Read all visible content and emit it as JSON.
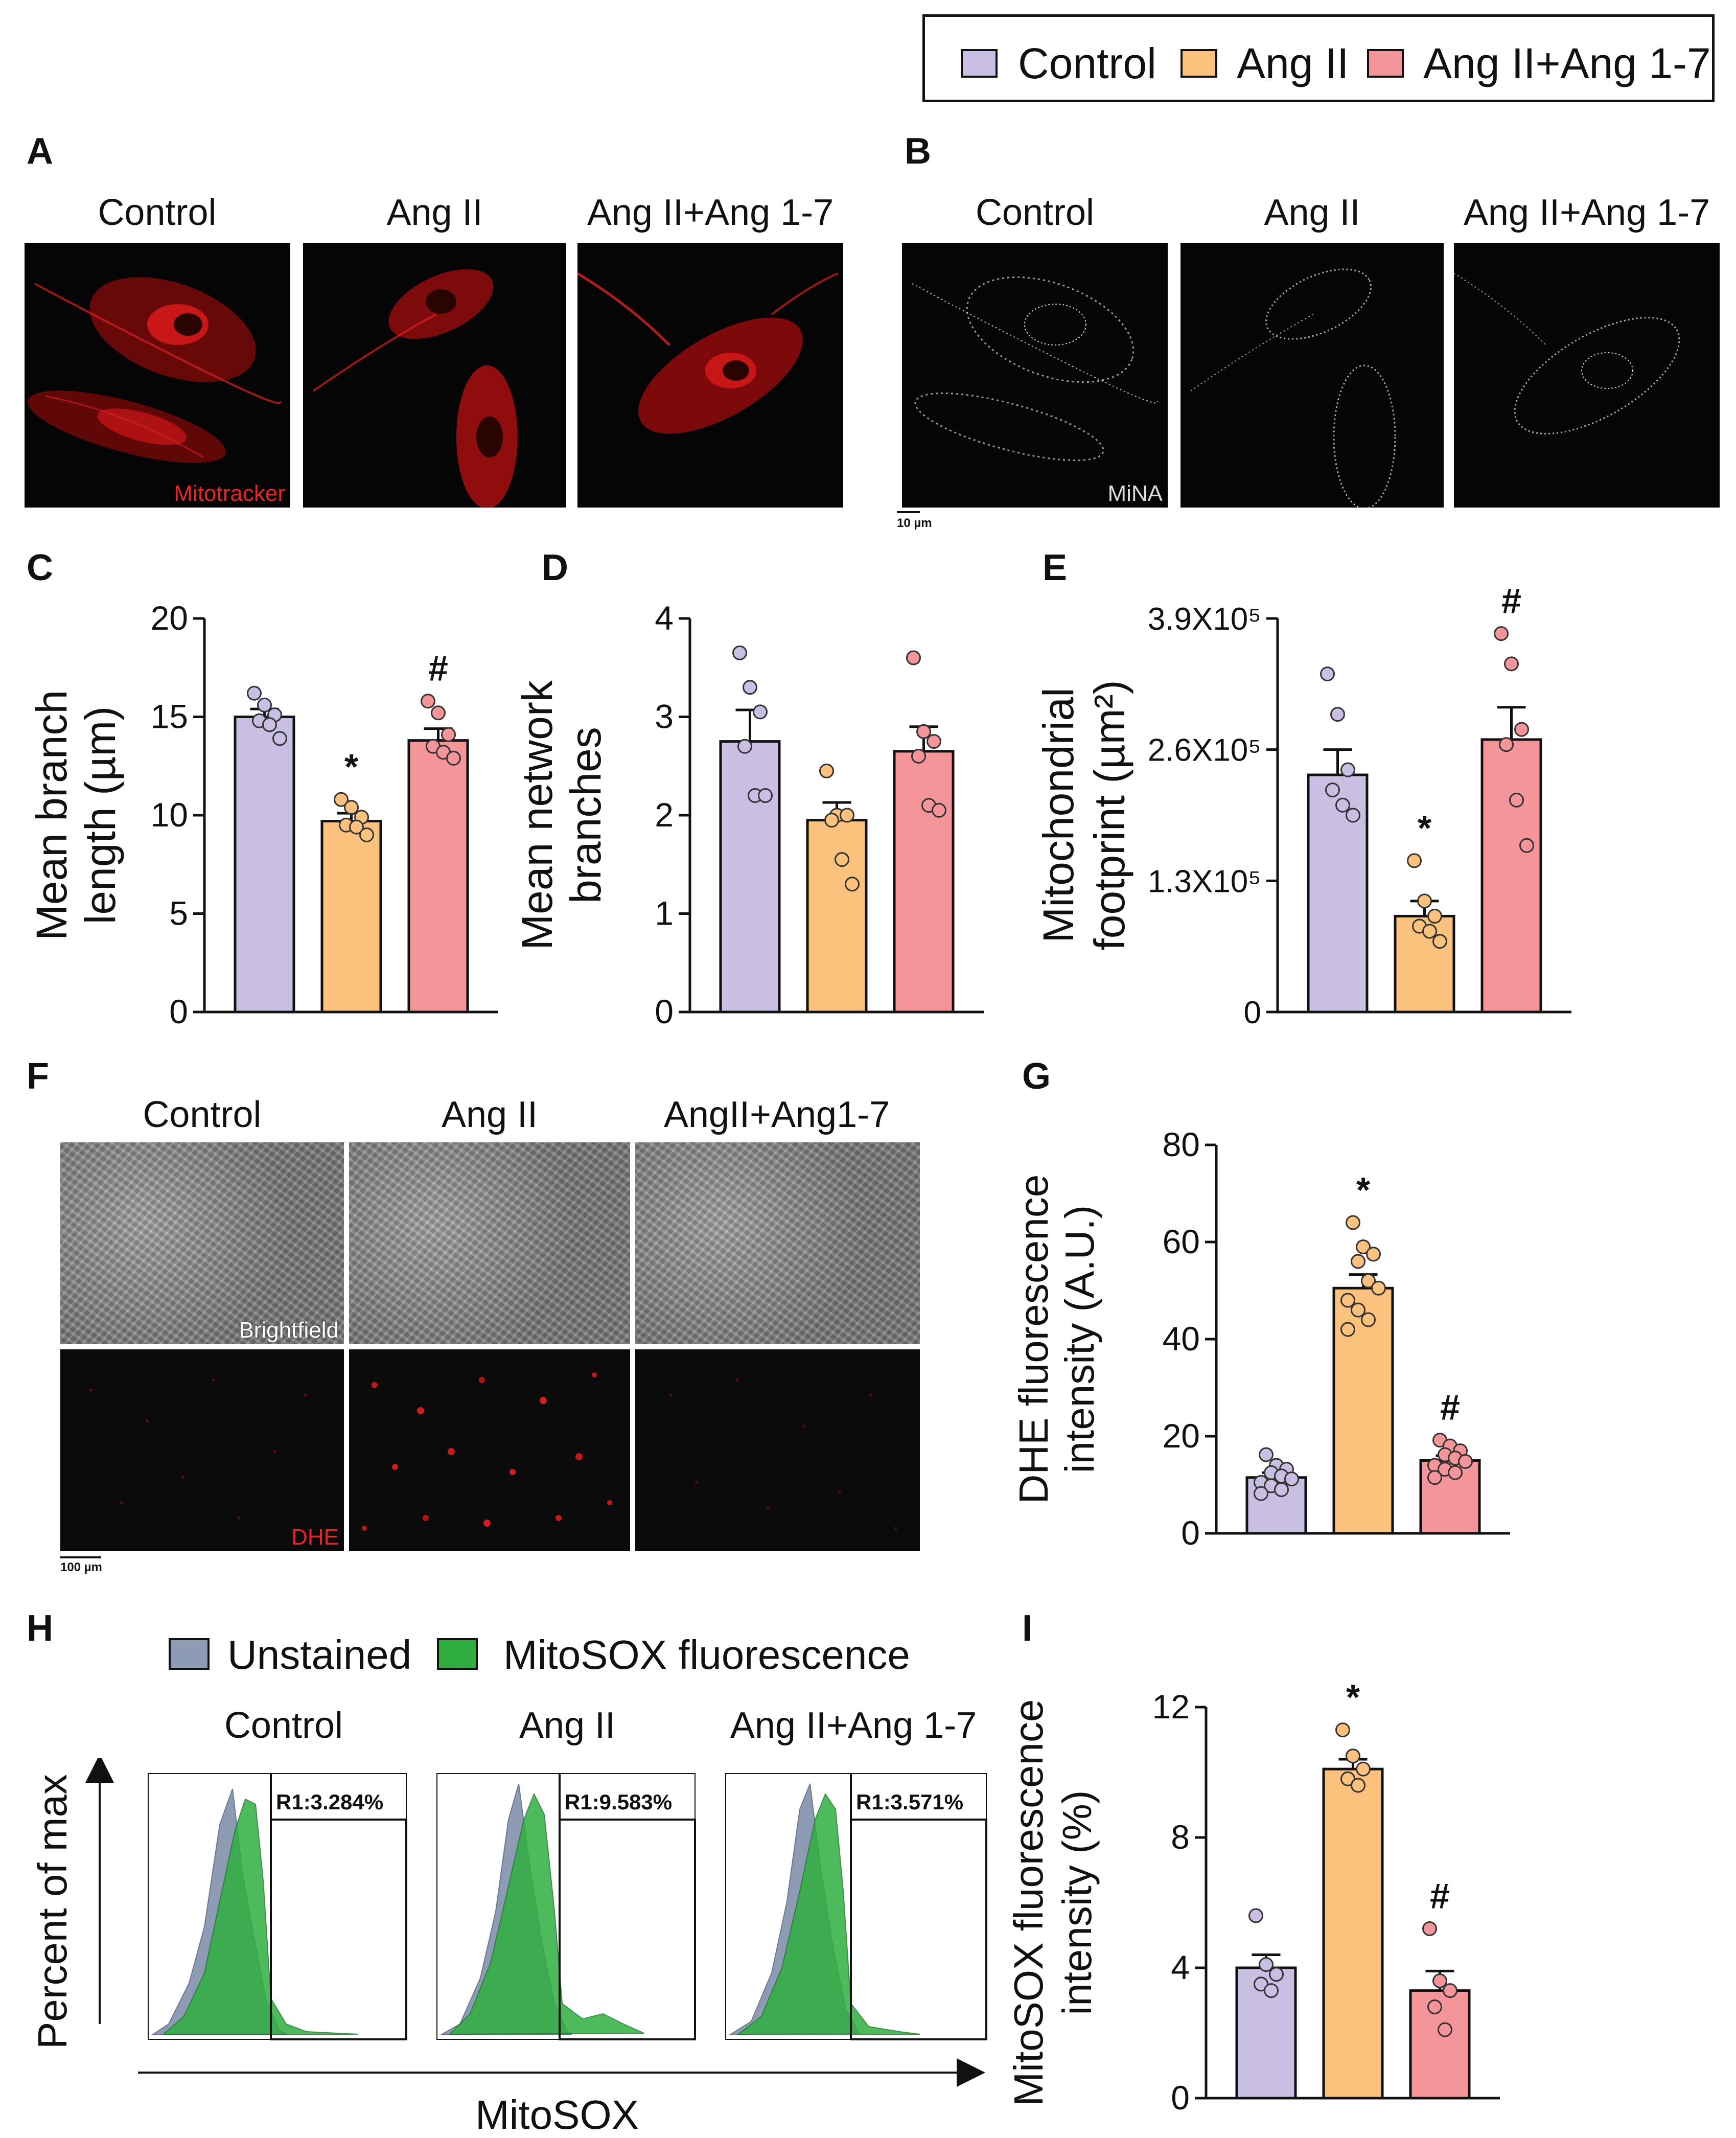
{
  "legend_top": {
    "items": [
      {
        "label": "Control",
        "color": "#c9bfe3"
      },
      {
        "label": "Ang II",
        "color": "#fbc27e"
      },
      {
        "label": "Ang II+Ang 1-7",
        "color": "#f4959a"
      }
    ]
  },
  "panels": {
    "A": {
      "letter": "A",
      "titles": [
        "Control",
        "Ang II",
        "Ang II+Ang 1-7"
      ],
      "stain": "Mitotracker"
    },
    "B": {
      "letter": "B",
      "titles": [
        "Control",
        "Ang II",
        "Ang II+Ang 1-7"
      ],
      "stain": "MiNA",
      "scalebar": "10 µm"
    },
    "C": {
      "letter": "C"
    },
    "D": {
      "letter": "D"
    },
    "E": {
      "letter": "E"
    },
    "F": {
      "letter": "F",
      "titles": [
        "Control",
        "Ang II",
        "AngII+Ang1-7"
      ],
      "stain_top": "Brightfield",
      "stain_bottom": "DHE",
      "scalebar": "100 µm"
    },
    "G": {
      "letter": "G"
    },
    "H": {
      "letter": "H",
      "legend": [
        {
          "label": "Unstained",
          "color": "#8e9bb5"
        },
        {
          "label": "MitoSOX fluorescence",
          "color": "#2fae3f"
        }
      ],
      "titles": [
        "Control",
        "Ang II",
        "Ang II+Ang 1-7"
      ],
      "ylabel": "Percent of max",
      "xlabel": "MitoSOX",
      "gates": [
        "R1:3.284%",
        "R1:9.583%",
        "R1:3.571%"
      ]
    },
    "I": {
      "letter": "I"
    }
  },
  "chart_data": [
    {
      "id": "C",
      "type": "bar",
      "categories": [
        "Control",
        "Ang II",
        "Ang II+Ang 1-7"
      ],
      "values": [
        15.0,
        9.7,
        13.8
      ],
      "sem": [
        0.4,
        0.4,
        0.6
      ],
      "points": [
        [
          16.2,
          15.6,
          15.1,
          14.8,
          14.6,
          13.9
        ],
        [
          10.8,
          10.4,
          9.9,
          9.5,
          9.4,
          9.0
        ],
        [
          15.8,
          15.2,
          14.1,
          13.5,
          13.2,
          12.9
        ]
      ],
      "significance": [
        "",
        "*",
        "#"
      ],
      "ylabel": "Mean branch length (µm)",
      "yticks": [
        "0",
        "5",
        "10",
        "15",
        "20"
      ],
      "ylim": [
        0,
        20
      ]
    },
    {
      "id": "D",
      "type": "bar",
      "categories": [
        "Control",
        "Ang II",
        "Ang II+Ang 1-7"
      ],
      "values": [
        2.75,
        1.95,
        2.65
      ],
      "sem": [
        0.32,
        0.18,
        0.25
      ],
      "points": [
        [
          3.65,
          3.3,
          3.05,
          2.7,
          2.2,
          2.2
        ],
        [
          2.45,
          2.0,
          2.0,
          1.95,
          1.55,
          1.3
        ],
        [
          3.6,
          2.85,
          2.75,
          2.6,
          2.1,
          2.05
        ]
      ],
      "significance": [
        "",
        "",
        ""
      ],
      "ylabel": "Mean network branches",
      "yticks": [
        "0",
        "1",
        "2",
        "3",
        "4"
      ],
      "ylim": [
        0,
        4
      ]
    },
    {
      "id": "E",
      "type": "bar",
      "categories": [
        "Control",
        "Ang II",
        "Ang II+Ang 1-7"
      ],
      "values": [
        235000,
        95000,
        270000
      ],
      "sem": [
        25000,
        15000,
        32000
      ],
      "points": [
        [
          335000,
          295000,
          240000,
          220000,
          205000,
          195000
        ],
        [
          150000,
          110000,
          95000,
          85000,
          80000,
          70000
        ],
        [
          375000,
          345000,
          280000,
          265000,
          210000,
          165000
        ]
      ],
      "significance": [
        "",
        "*",
        "#"
      ],
      "ylabel": "Mitochondrial footprint (µm²)",
      "yticks": [
        "0",
        "1.3X10⁵",
        "2.6X10⁵",
        "3.9X10⁵"
      ],
      "ylim": [
        0,
        390000
      ]
    },
    {
      "id": "G",
      "type": "bar",
      "categories": [
        "Control",
        "Ang II",
        "Ang II+Ang 1-7"
      ],
      "values": [
        11.5,
        50.5,
        15.0
      ],
      "sem": [
        1.0,
        2.8,
        1.0
      ],
      "points": [
        [
          16.2,
          14.0,
          13.2,
          12.5,
          11.8,
          11.2,
          10.5,
          9.8,
          9.0,
          8.2
        ],
        [
          64.0,
          59.0,
          57.5,
          56.0,
          52.0,
          50.5,
          48.0,
          46.0,
          44.0,
          42.0
        ],
        [
          19.2,
          18.0,
          17.0,
          16.2,
          15.5,
          14.8,
          14.0,
          13.2,
          12.5,
          11.5
        ]
      ],
      "significance": [
        "",
        "*",
        "#"
      ],
      "ylabel": "DHE fluorescence intensity (A.U.)",
      "yticks": [
        "0",
        "20",
        "40",
        "60",
        "80"
      ],
      "ylim": [
        0,
        80
      ]
    },
    {
      "id": "I",
      "type": "bar",
      "categories": [
        "Control",
        "Ang II",
        "Ang II+Ang 1-7"
      ],
      "values": [
        4.0,
        10.1,
        3.3
      ],
      "sem": [
        0.4,
        0.3,
        0.6
      ],
      "points": [
        [
          5.6,
          4.1,
          3.8,
          3.5,
          3.3
        ],
        [
          11.3,
          10.5,
          10.1,
          9.8,
          9.6
        ],
        [
          5.2,
          3.6,
          3.3,
          2.8,
          2.1
        ]
      ],
      "significance": [
        "",
        "*",
        "#"
      ],
      "ylabel": "MitoSOX fluorescence intensity (%)",
      "yticks": [
        "0",
        "4",
        "8",
        "12"
      ],
      "ylim": [
        0,
        12
      ]
    }
  ]
}
